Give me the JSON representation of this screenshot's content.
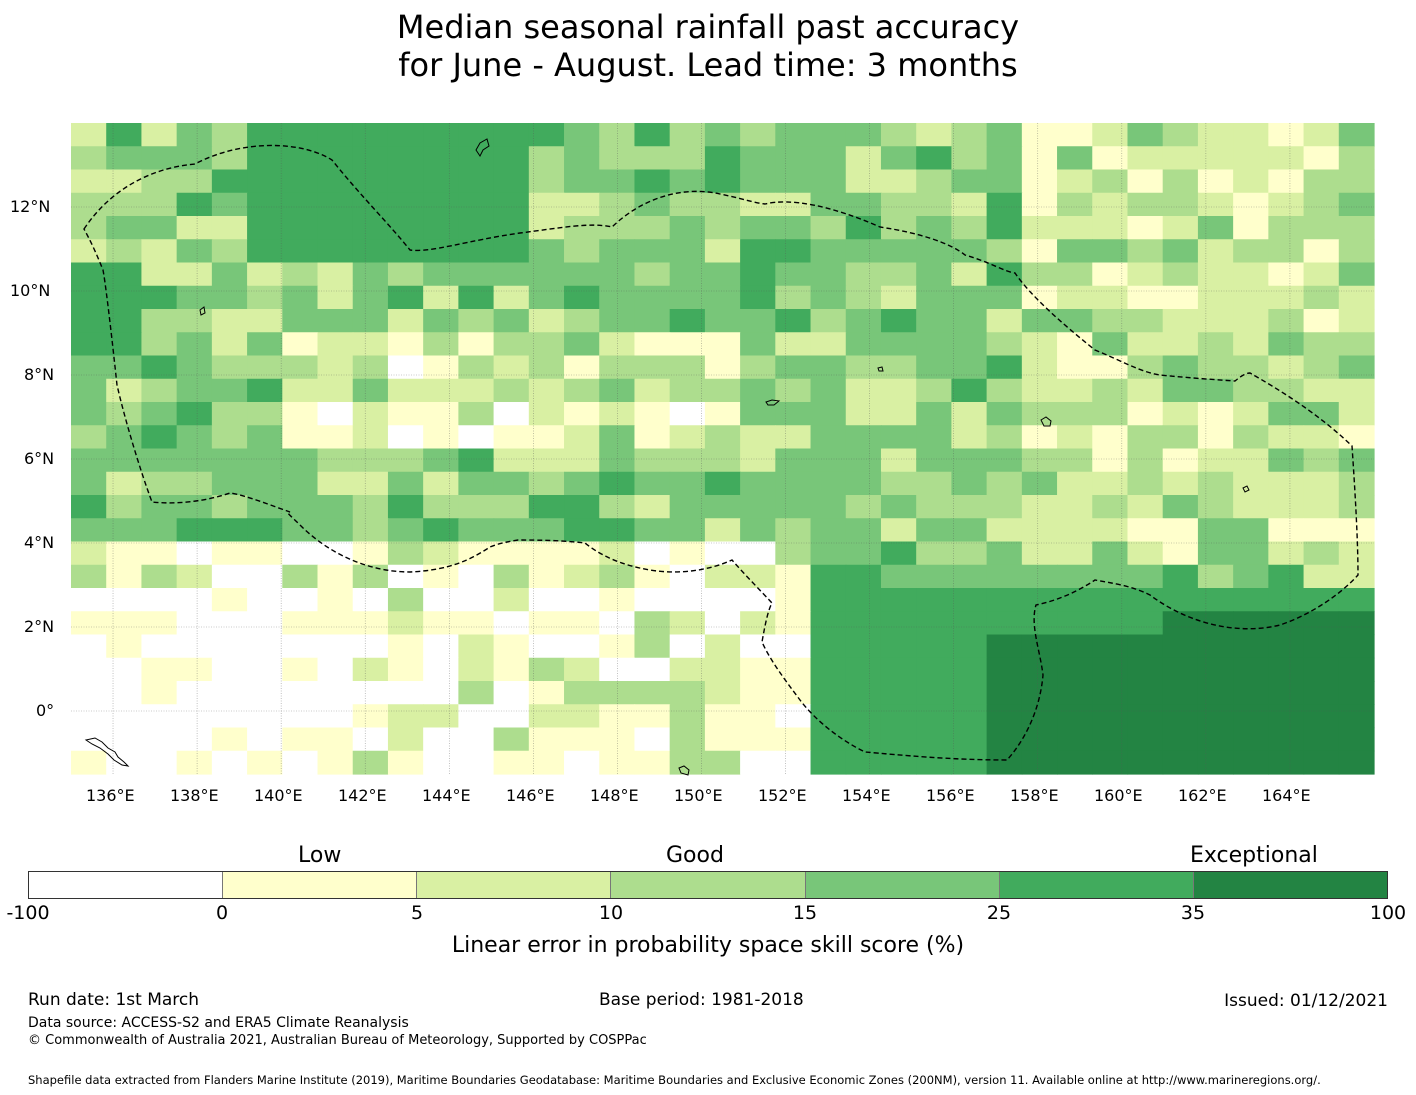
{
  "title": {
    "line1": "Median seasonal rainfall past accuracy",
    "line2": "for June - August. Lead time: 3 months"
  },
  "map": {
    "lat_labels": [
      "12°N",
      "10°N",
      "8°N",
      "6°N",
      "4°N",
      "2°N",
      "0°"
    ],
    "lon_labels": [
      "136°E",
      "138°E",
      "140°E",
      "142°E",
      "144°E",
      "146°E",
      "148°E",
      "150°E",
      "152°E",
      "154°E",
      "156°E",
      "158°E",
      "160°E",
      "162°E",
      "164°E"
    ],
    "lon_range": [
      135,
      166
    ],
    "lat_range": [
      -1.5,
      14
    ]
  },
  "colorbar": {
    "category_labels": [
      "Low",
      "Good",
      "Exceptional"
    ],
    "ticks": [
      "-100",
      "0",
      "5",
      "10",
      "15",
      "25",
      "35",
      "100"
    ],
    "colors": [
      "#ffffff",
      "#ffffcc",
      "#d9f0a3",
      "#addd8e",
      "#78c679",
      "#41ab5d",
      "#238443"
    ],
    "xlabel": "Linear error in probability space skill score (%)"
  },
  "footer": {
    "run_date": "Run date: 1st March",
    "base_period": "Base period: 1981-2018",
    "issued": "Issued: 01/12/2021",
    "data_source": "Data source: ACCESS-S2 and ERA5 Climate Reanalysis",
    "copyright": "© Commonwealth of Australia 2021, Australian Bureau of Meteorology, Supported by COSPPac",
    "shapefile": "Shapefile data extracted from Flanders Marine Institute (2019), Maritime Boundaries Geodatabase: Maritime Boundaries and Exclusive Economic Zones (200NM), version 11. Available online at http://www.marineregions.org/."
  }
}
